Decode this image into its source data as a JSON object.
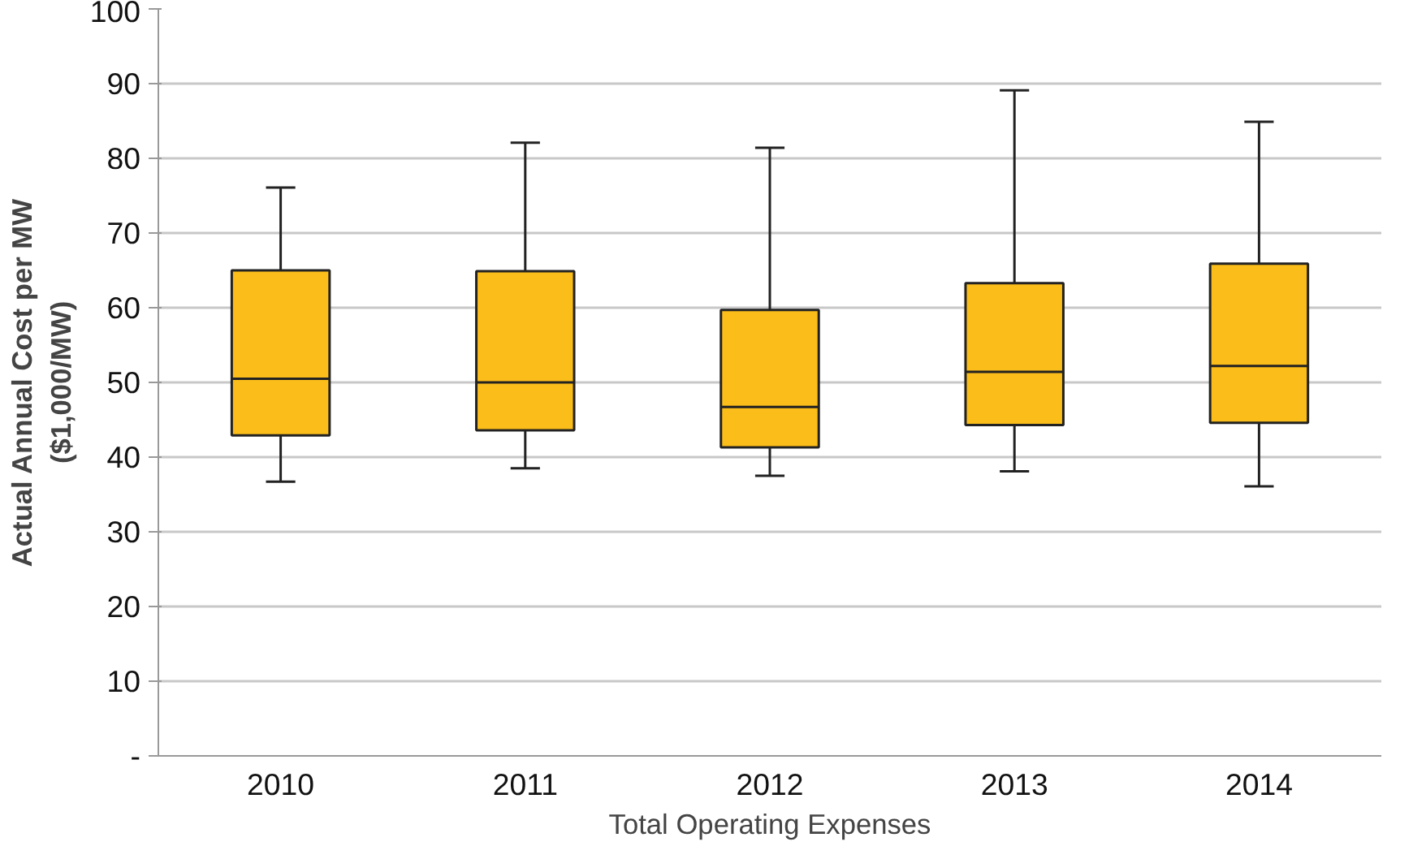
{
  "chart_data": {
    "type": "box",
    "ylabel": "Actual Annual Cost per MW\n($1,000/MW)",
    "xlabel": "Total Operating Expenses",
    "categories": [
      "2010",
      "2011",
      "2012",
      "2013",
      "2014"
    ],
    "color": "#fbbd19",
    "boxes": [
      {
        "low": 36.7,
        "q1": 42.9,
        "median": 50.5,
        "q3": 65.0,
        "high": 76.1
      },
      {
        "low": 38.5,
        "q1": 43.6,
        "median": 50.0,
        "q3": 64.9,
        "high": 82.1
      },
      {
        "low": 37.5,
        "q1": 41.3,
        "median": 46.7,
        "q3": 59.7,
        "high": 81.4
      },
      {
        "low": 38.1,
        "q1": 44.3,
        "median": 51.4,
        "q3": 63.3,
        "high": 89.1
      },
      {
        "low": 36.1,
        "q1": 44.6,
        "median": 52.2,
        "q3": 65.9,
        "high": 84.9
      }
    ],
    "ylim": [
      0,
      100
    ],
    "yticks": [
      {
        "value": 0,
        "label": "-"
      },
      10,
      20,
      30,
      40,
      50,
      60,
      70,
      80,
      90,
      100
    ],
    "grid": "y"
  }
}
